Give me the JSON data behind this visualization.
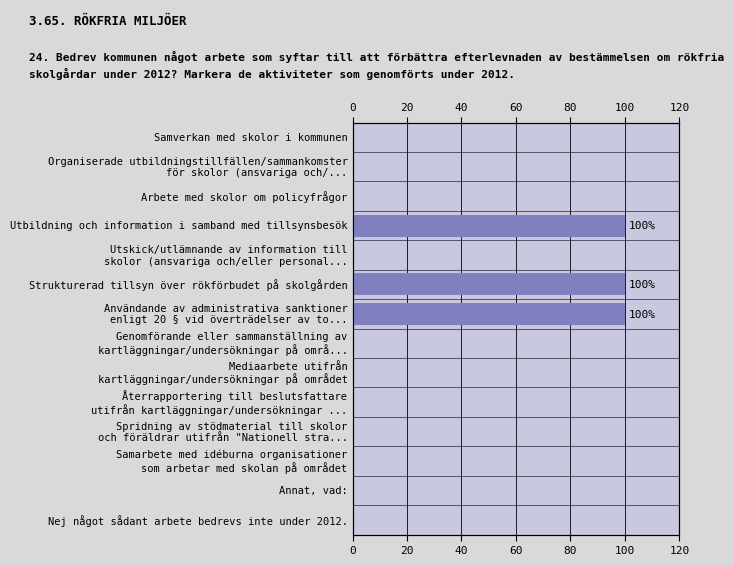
{
  "title": "3.65. RÖKFRIA MILJÖER",
  "subtitle": "24. Bedrev kommunen något arbete som syftar till att förbättra efterlevnaden av bestämmelsen om rökfria\nskolgårdar under 2012? Markera de aktiviteter som genomförts under 2012.",
  "categories": [
    "Samverkan med skolor i kommunen",
    "Organiserade utbildningstillfällen/sammankomster\nför skolor (ansvariga och/...",
    "Arbete med skolor om policyfrågor",
    "Utbildning och information i samband med tillsynsbesök",
    "Utskick/utlämnande av information till\nskolor (ansvariga och/eller personal...",
    "Strukturerad tillsyn över rökförbudet på skolgården",
    "Användande av administrativa sanktioner\nenligt 20 § vid överträdelser av to...",
    "Genomförande eller sammanställning av\nkartläggningar/undersökningar på områ...",
    "Mediaarbete utifrån\nkartläggningar/undersökningar på området",
    "Återrapportering till beslutsfattare\nutifrån kartläggningar/undersökningar ...",
    "Spridning av stödmaterial till skolor\noch föräldrar utifrån \"Nationell stra...",
    "Samarbete med idéburna organisationer\nsom arbetar med skolan på området",
    "Annat, vad:",
    "Nej något sådant arbete bedrevs inte under 2012."
  ],
  "values": [
    0,
    0,
    0,
    100,
    0,
    100,
    100,
    0,
    0,
    0,
    0,
    0,
    0,
    0
  ],
  "bar_color": "#8080c0",
  "bar_background_color": "#c8c8e0",
  "background_color": "#d9d9d9",
  "xlim": [
    0,
    120
  ],
  "xticks": [
    0,
    20,
    40,
    60,
    80,
    100,
    120
  ],
  "grid_color": "#000000",
  "bar_height": 0.75,
  "label_fontsize": 7.5,
  "title_fontsize": 9,
  "subtitle_fontsize": 8,
  "tick_fontsize": 8,
  "pct_fontsize": 8
}
